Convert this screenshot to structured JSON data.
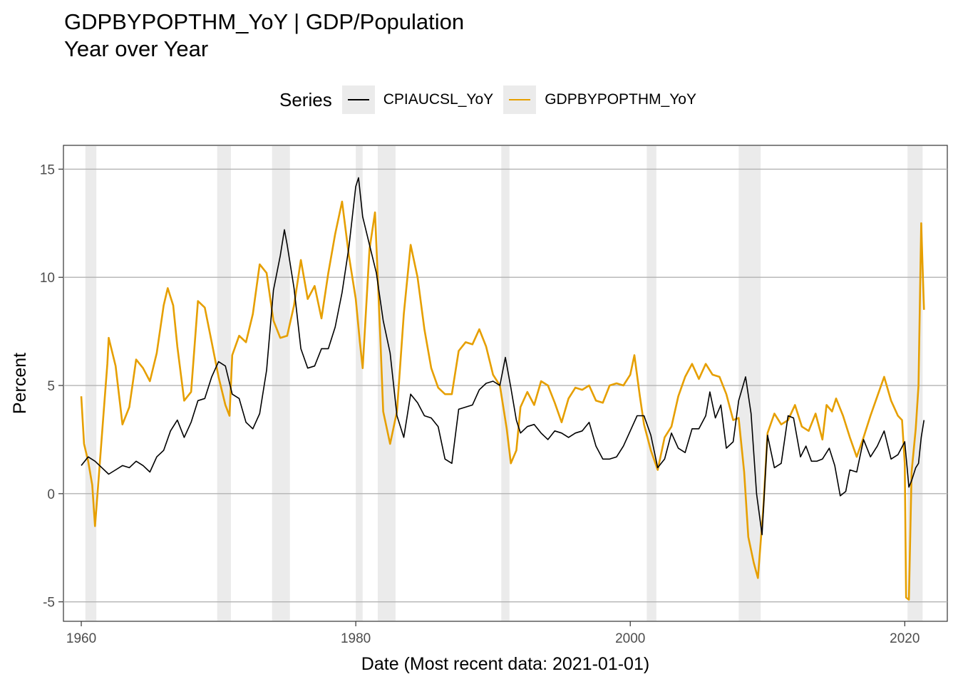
{
  "chart_data": {
    "type": "line",
    "title": "GDPBYPOPTHM_YoY | GDP/Population",
    "subtitle": "Year over Year",
    "xlabel": "Date (Most recent data: 2021-01-01)",
    "ylabel": "Percent",
    "xlim": [
      1958.7,
      2023.1
    ],
    "ylim": [
      -5.9,
      16.1
    ],
    "x_ticks": [
      1960,
      1980,
      2000,
      2020
    ],
    "y_ticks": [
      -5,
      0,
      5,
      10,
      15
    ],
    "grid": true,
    "legend": {
      "title": "Series",
      "position": "top"
    },
    "recessions": [
      [
        1960.3,
        1961.1
      ],
      [
        1969.9,
        1970.9
      ],
      [
        1973.9,
        1975.2
      ],
      [
        1980.0,
        1980.5
      ],
      [
        1981.6,
        1982.9
      ],
      [
        1990.6,
        1991.2
      ],
      [
        2001.2,
        2001.9
      ],
      [
        2007.9,
        2009.5
      ],
      [
        2020.2,
        2021.3
      ]
    ],
    "series": [
      {
        "name": "CPIAUCSL_YoY",
        "color": "#000000",
        "points": [
          [
            1960.0,
            1.3
          ],
          [
            1960.5,
            1.7
          ],
          [
            1961.0,
            1.5
          ],
          [
            1961.5,
            1.2
          ],
          [
            1962.0,
            0.9
          ],
          [
            1962.5,
            1.1
          ],
          [
            1963.0,
            1.3
          ],
          [
            1963.5,
            1.2
          ],
          [
            1964.0,
            1.5
          ],
          [
            1964.5,
            1.3
          ],
          [
            1965.0,
            1.0
          ],
          [
            1965.5,
            1.7
          ],
          [
            1966.0,
            2.0
          ],
          [
            1966.5,
            2.9
          ],
          [
            1967.0,
            3.4
          ],
          [
            1967.5,
            2.6
          ],
          [
            1968.0,
            3.3
          ],
          [
            1968.5,
            4.3
          ],
          [
            1969.0,
            4.4
          ],
          [
            1969.5,
            5.4
          ],
          [
            1970.0,
            6.1
          ],
          [
            1970.5,
            5.9
          ],
          [
            1971.0,
            4.6
          ],
          [
            1971.5,
            4.4
          ],
          [
            1972.0,
            3.3
          ],
          [
            1972.5,
            3.0
          ],
          [
            1973.0,
            3.7
          ],
          [
            1973.5,
            5.7
          ],
          [
            1974.0,
            9.4
          ],
          [
            1974.5,
            11.0
          ],
          [
            1974.8,
            12.2
          ],
          [
            1975.0,
            11.5
          ],
          [
            1975.5,
            9.5
          ],
          [
            1976.0,
            6.7
          ],
          [
            1976.5,
            5.8
          ],
          [
            1977.0,
            5.9
          ],
          [
            1977.5,
            6.7
          ],
          [
            1978.0,
            6.7
          ],
          [
            1978.5,
            7.7
          ],
          [
            1979.0,
            9.3
          ],
          [
            1979.5,
            11.4
          ],
          [
            1980.0,
            14.2
          ],
          [
            1980.2,
            14.6
          ],
          [
            1980.5,
            12.8
          ],
          [
            1981.0,
            11.5
          ],
          [
            1981.5,
            10.2
          ],
          [
            1982.0,
            8.0
          ],
          [
            1982.5,
            6.5
          ],
          [
            1983.0,
            3.6
          ],
          [
            1983.5,
            2.6
          ],
          [
            1984.0,
            4.6
          ],
          [
            1984.5,
            4.2
          ],
          [
            1985.0,
            3.6
          ],
          [
            1985.5,
            3.5
          ],
          [
            1986.0,
            3.1
          ],
          [
            1986.5,
            1.6
          ],
          [
            1987.0,
            1.4
          ],
          [
            1987.5,
            3.9
          ],
          [
            1988.0,
            4.0
          ],
          [
            1988.5,
            4.1
          ],
          [
            1989.0,
            4.8
          ],
          [
            1989.5,
            5.1
          ],
          [
            1990.0,
            5.2
          ],
          [
            1990.5,
            5.0
          ],
          [
            1990.9,
            6.3
          ],
          [
            1991.3,
            4.9
          ],
          [
            1991.7,
            3.4
          ],
          [
            1992.0,
            2.8
          ],
          [
            1992.5,
            3.1
          ],
          [
            1993.0,
            3.2
          ],
          [
            1993.5,
            2.8
          ],
          [
            1994.0,
            2.5
          ],
          [
            1994.5,
            2.9
          ],
          [
            1995.0,
            2.8
          ],
          [
            1995.5,
            2.6
          ],
          [
            1996.0,
            2.8
          ],
          [
            1996.5,
            2.9
          ],
          [
            1997.0,
            3.3
          ],
          [
            1997.5,
            2.2
          ],
          [
            1998.0,
            1.6
          ],
          [
            1998.5,
            1.6
          ],
          [
            1999.0,
            1.7
          ],
          [
            1999.5,
            2.2
          ],
          [
            2000.0,
            2.9
          ],
          [
            2000.5,
            3.6
          ],
          [
            2001.0,
            3.6
          ],
          [
            2001.5,
            2.7
          ],
          [
            2002.0,
            1.2
          ],
          [
            2002.5,
            1.6
          ],
          [
            2003.0,
            2.8
          ],
          [
            2003.5,
            2.1
          ],
          [
            2004.0,
            1.9
          ],
          [
            2004.5,
            3.0
          ],
          [
            2005.0,
            3.0
          ],
          [
            2005.5,
            3.6
          ],
          [
            2005.8,
            4.7
          ],
          [
            2006.2,
            3.5
          ],
          [
            2006.6,
            4.1
          ],
          [
            2007.0,
            2.1
          ],
          [
            2007.5,
            2.4
          ],
          [
            2007.9,
            4.3
          ],
          [
            2008.4,
            5.4
          ],
          [
            2008.8,
            3.7
          ],
          [
            2009.2,
            0.0
          ],
          [
            2009.6,
            -1.9
          ],
          [
            2010.0,
            2.7
          ],
          [
            2010.5,
            1.2
          ],
          [
            2011.0,
            1.4
          ],
          [
            2011.5,
            3.6
          ],
          [
            2011.9,
            3.5
          ],
          [
            2012.4,
            1.7
          ],
          [
            2012.8,
            2.2
          ],
          [
            2013.2,
            1.5
          ],
          [
            2013.6,
            1.5
          ],
          [
            2014.0,
            1.6
          ],
          [
            2014.5,
            2.1
          ],
          [
            2014.9,
            1.3
          ],
          [
            2015.3,
            -0.1
          ],
          [
            2015.7,
            0.1
          ],
          [
            2016.0,
            1.1
          ],
          [
            2016.5,
            1.0
          ],
          [
            2017.0,
            2.5
          ],
          [
            2017.5,
            1.7
          ],
          [
            2018.0,
            2.2
          ],
          [
            2018.5,
            2.9
          ],
          [
            2019.0,
            1.6
          ],
          [
            2019.5,
            1.8
          ],
          [
            2020.0,
            2.4
          ],
          [
            2020.3,
            0.3
          ],
          [
            2020.5,
            0.6
          ],
          [
            2020.8,
            1.2
          ],
          [
            2021.0,
            1.4
          ],
          [
            2021.2,
            2.6
          ],
          [
            2021.4,
            3.4
          ]
        ]
      },
      {
        "name": "GDPBYPOPTHM_YoY",
        "color": "#e69f00",
        "points": [
          [
            1960.0,
            4.5
          ],
          [
            1960.2,
            2.3
          ],
          [
            1960.5,
            1.5
          ],
          [
            1960.8,
            0.4
          ],
          [
            1961.0,
            -1.5
          ],
          [
            1961.3,
            1.0
          ],
          [
            1961.6,
            3.5
          ],
          [
            1961.9,
            6.0
          ],
          [
            1962.0,
            7.2
          ],
          [
            1962.5,
            5.9
          ],
          [
            1963.0,
            3.2
          ],
          [
            1963.5,
            4.0
          ],
          [
            1964.0,
            6.2
          ],
          [
            1964.5,
            5.8
          ],
          [
            1965.0,
            5.2
          ],
          [
            1965.5,
            6.5
          ],
          [
            1966.0,
            8.7
          ],
          [
            1966.3,
            9.5
          ],
          [
            1966.7,
            8.7
          ],
          [
            1967.0,
            6.8
          ],
          [
            1967.5,
            4.3
          ],
          [
            1968.0,
            4.7
          ],
          [
            1968.5,
            8.9
          ],
          [
            1969.0,
            8.6
          ],
          [
            1969.5,
            7.0
          ],
          [
            1970.0,
            5.4
          ],
          [
            1970.5,
            4.1
          ],
          [
            1970.8,
            3.6
          ],
          [
            1971.0,
            6.4
          ],
          [
            1971.5,
            7.3
          ],
          [
            1972.0,
            7.0
          ],
          [
            1972.5,
            8.3
          ],
          [
            1973.0,
            10.6
          ],
          [
            1973.5,
            10.2
          ],
          [
            1974.0,
            8.0
          ],
          [
            1974.5,
            7.2
          ],
          [
            1975.0,
            7.3
          ],
          [
            1975.5,
            8.7
          ],
          [
            1976.0,
            10.8
          ],
          [
            1976.5,
            9.0
          ],
          [
            1977.0,
            9.6
          ],
          [
            1977.5,
            8.1
          ],
          [
            1978.0,
            10.2
          ],
          [
            1978.5,
            12.0
          ],
          [
            1979.0,
            13.5
          ],
          [
            1979.5,
            11.0
          ],
          [
            1980.0,
            9.0
          ],
          [
            1980.3,
            7.0
          ],
          [
            1980.5,
            5.8
          ],
          [
            1981.0,
            11.3
          ],
          [
            1981.4,
            13.0
          ],
          [
            1981.8,
            7.0
          ],
          [
            1982.0,
            3.8
          ],
          [
            1982.5,
            2.3
          ],
          [
            1983.0,
            3.8
          ],
          [
            1983.5,
            8.3
          ],
          [
            1984.0,
            11.5
          ],
          [
            1984.5,
            10.0
          ],
          [
            1985.0,
            7.6
          ],
          [
            1985.5,
            5.8
          ],
          [
            1986.0,
            4.9
          ],
          [
            1986.5,
            4.6
          ],
          [
            1987.0,
            4.6
          ],
          [
            1987.5,
            6.6
          ],
          [
            1988.0,
            7.0
          ],
          [
            1988.5,
            6.9
          ],
          [
            1989.0,
            7.6
          ],
          [
            1989.5,
            6.8
          ],
          [
            1990.0,
            5.5
          ],
          [
            1990.5,
            5.0
          ],
          [
            1991.0,
            3.0
          ],
          [
            1991.3,
            1.4
          ],
          [
            1991.7,
            2.0
          ],
          [
            1992.0,
            4.0
          ],
          [
            1992.5,
            4.7
          ],
          [
            1993.0,
            4.1
          ],
          [
            1993.5,
            5.2
          ],
          [
            1994.0,
            5.0
          ],
          [
            1994.5,
            4.2
          ],
          [
            1995.0,
            3.3
          ],
          [
            1995.5,
            4.4
          ],
          [
            1996.0,
            4.9
          ],
          [
            1996.5,
            4.8
          ],
          [
            1997.0,
            5.0
          ],
          [
            1997.5,
            4.3
          ],
          [
            1998.0,
            4.2
          ],
          [
            1998.5,
            5.0
          ],
          [
            1999.0,
            5.1
          ],
          [
            1999.5,
            5.0
          ],
          [
            2000.0,
            5.5
          ],
          [
            2000.3,
            6.4
          ],
          [
            2000.7,
            4.5
          ],
          [
            2001.0,
            3.2
          ],
          [
            2001.5,
            2.0
          ],
          [
            2002.0,
            1.1
          ],
          [
            2002.5,
            2.6
          ],
          [
            2003.0,
            3.1
          ],
          [
            2003.5,
            4.5
          ],
          [
            2004.0,
            5.4
          ],
          [
            2004.5,
            6.0
          ],
          [
            2005.0,
            5.3
          ],
          [
            2005.5,
            6.0
          ],
          [
            2006.0,
            5.5
          ],
          [
            2006.5,
            5.4
          ],
          [
            2007.0,
            4.6
          ],
          [
            2007.5,
            3.4
          ],
          [
            2007.9,
            3.5
          ],
          [
            2008.3,
            1.0
          ],
          [
            2008.6,
            -2.0
          ],
          [
            2009.0,
            -3.2
          ],
          [
            2009.3,
            -3.9
          ],
          [
            2009.7,
            -0.6
          ],
          [
            2010.0,
            2.8
          ],
          [
            2010.5,
            3.7
          ],
          [
            2011.0,
            3.2
          ],
          [
            2011.5,
            3.4
          ],
          [
            2012.0,
            4.1
          ],
          [
            2012.5,
            3.1
          ],
          [
            2013.0,
            2.9
          ],
          [
            2013.5,
            3.7
          ],
          [
            2014.0,
            2.5
          ],
          [
            2014.3,
            4.1
          ],
          [
            2014.7,
            3.8
          ],
          [
            2015.0,
            4.4
          ],
          [
            2015.5,
            3.6
          ],
          [
            2016.0,
            2.6
          ],
          [
            2016.5,
            1.7
          ],
          [
            2017.0,
            2.6
          ],
          [
            2017.5,
            3.6
          ],
          [
            2018.0,
            4.5
          ],
          [
            2018.5,
            5.4
          ],
          [
            2019.0,
            4.3
          ],
          [
            2019.5,
            3.6
          ],
          [
            2019.8,
            3.4
          ],
          [
            2020.0,
            1.4
          ],
          [
            2020.1,
            -4.8
          ],
          [
            2020.3,
            -4.9
          ],
          [
            2020.5,
            1.0
          ],
          [
            2020.8,
            3.0
          ],
          [
            2021.0,
            5.0
          ],
          [
            2021.2,
            12.5
          ],
          [
            2021.3,
            10.5
          ],
          [
            2021.4,
            8.5
          ]
        ]
      }
    ]
  }
}
